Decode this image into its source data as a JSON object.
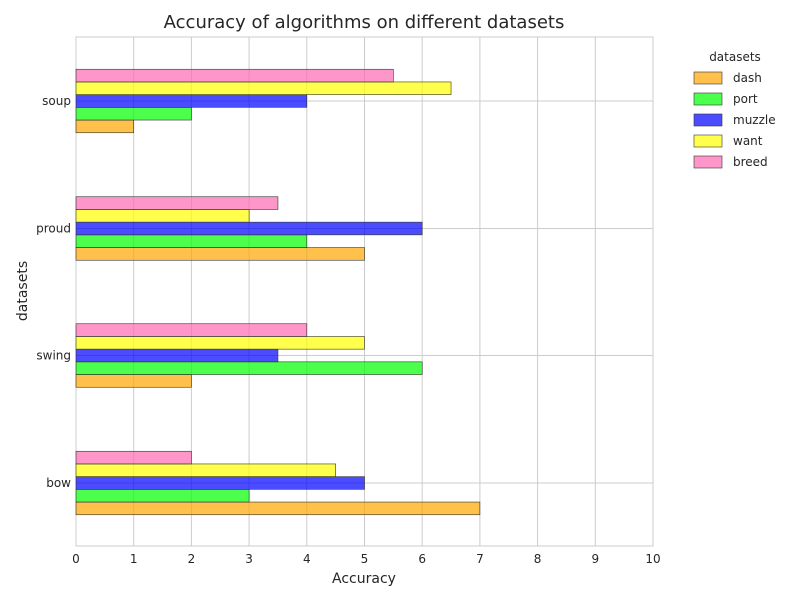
{
  "chart_data": {
    "type": "bar",
    "orientation": "horizontal",
    "title": "Accuracy of algorithms on different datasets",
    "xlabel": "Accuracy",
    "ylabel": "datasets",
    "categories": [
      "bow",
      "swing",
      "proud",
      "soup"
    ],
    "xlim": [
      0,
      10
    ],
    "xticks": [
      "0",
      "1",
      "2",
      "3",
      "4",
      "5",
      "6",
      "7",
      "8",
      "9",
      "10"
    ],
    "grid": true,
    "legend": {
      "title": "datasets",
      "position": "outside-top-right"
    },
    "series": [
      {
        "name": "dash",
        "color": "#FFA500",
        "values": [
          7,
          2,
          5,
          1
        ]
      },
      {
        "name": "port",
        "color": "#00FF00",
        "values": [
          3,
          6,
          4,
          2
        ]
      },
      {
        "name": "muzzle",
        "color": "#0000FF",
        "values": [
          5,
          3.5,
          6,
          4
        ]
      },
      {
        "name": "want",
        "color": "#FFFF00",
        "values": [
          4.5,
          5,
          3,
          6.5
        ]
      },
      {
        "name": "breed",
        "color": "#FF69B4",
        "values": [
          2,
          4,
          3.5,
          5.5
        ]
      }
    ]
  }
}
